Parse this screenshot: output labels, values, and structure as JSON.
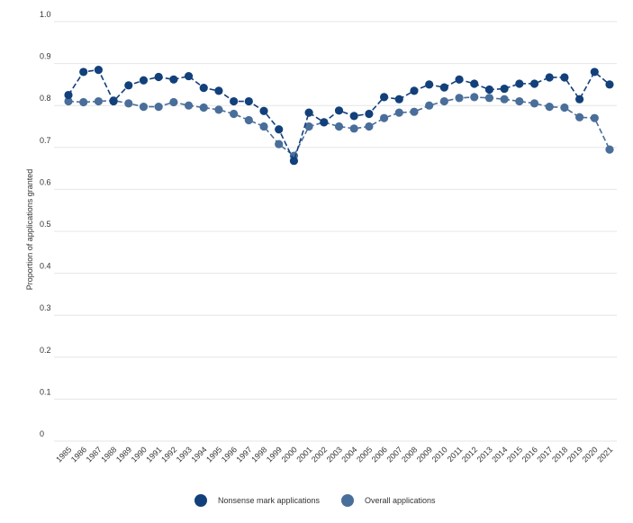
{
  "chart_data": {
    "type": "line",
    "title": "",
    "xlabel": "",
    "ylabel": "Proportion of applications granted",
    "ylim": [
      0,
      1.0
    ],
    "yticks": [
      0,
      0.1,
      0.2,
      0.3,
      0.4,
      0.5,
      0.6,
      0.7,
      0.8,
      0.9,
      1.0
    ],
    "ytick_labels": [
      "0",
      "0.1",
      "0.2",
      "0.3",
      "0.4",
      "0.5",
      "0.6",
      "0.7",
      "0.8",
      "0.9",
      "1.0"
    ],
    "grid": true,
    "legend_position": "bottom-center",
    "x": [
      "1985",
      "1986",
      "1987",
      "1988",
      "1989",
      "1990",
      "1991",
      "1992",
      "1993",
      "1994",
      "1995",
      "1996",
      "1997",
      "1998",
      "1999",
      "2000",
      "2001",
      "2002",
      "2003",
      "2004",
      "2005",
      "2006",
      "2007",
      "2008",
      "2009",
      "2010",
      "2011",
      "2012",
      "2013",
      "2014",
      "2015",
      "2016",
      "2017",
      "2018",
      "2019",
      "2020",
      "2021"
    ],
    "series": [
      {
        "name": "Nonsense mark applications",
        "color": "#12407a",
        "values": [
          0.825,
          0.88,
          0.885,
          0.81,
          0.848,
          0.86,
          0.868,
          0.862,
          0.87,
          0.842,
          0.835,
          0.81,
          0.81,
          0.787,
          0.743,
          0.668,
          0.783,
          0.76,
          0.788,
          0.775,
          0.78,
          0.82,
          0.815,
          0.835,
          0.85,
          0.843,
          0.862,
          0.852,
          0.838,
          0.84,
          0.852,
          0.852,
          0.867,
          0.867,
          0.815,
          0.88,
          0.85
        ]
      },
      {
        "name": "Overall applications",
        "color": "#4a6e9a",
        "values": [
          0.81,
          0.808,
          0.81,
          0.812,
          0.805,
          0.797,
          0.797,
          0.808,
          0.8,
          0.795,
          0.79,
          0.78,
          0.765,
          0.75,
          0.708,
          0.68,
          0.75,
          0.76,
          0.75,
          0.745,
          0.75,
          0.77,
          0.783,
          0.785,
          0.8,
          0.81,
          0.818,
          0.82,
          0.818,
          0.815,
          0.81,
          0.805,
          0.797,
          0.795,
          0.772,
          0.77,
          0.695
        ]
      }
    ]
  }
}
